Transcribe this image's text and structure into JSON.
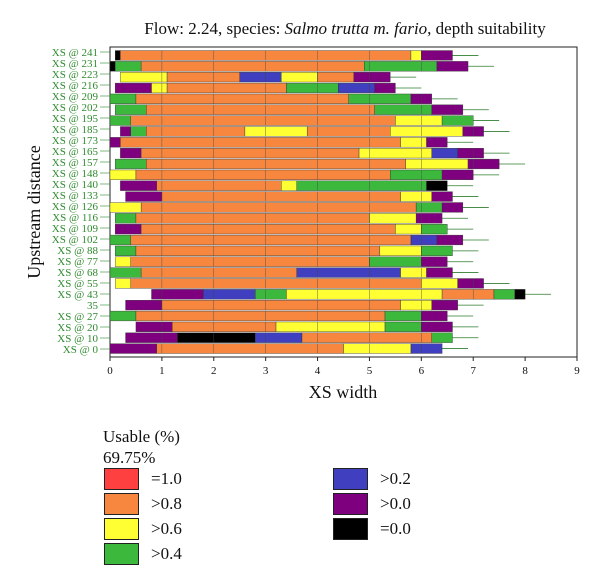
{
  "title": {
    "prefix": "Flow: 2.24, species: ",
    "species": "Salmo trutta m. fario",
    "suffix": ", depth suitability"
  },
  "legend": {
    "title": "Usable (%)",
    "value": "69.75%",
    "items": [
      {
        "label": "=1.0",
        "color": "#ff4040"
      },
      {
        "label": ">0.8",
        "color": "#f7873f"
      },
      {
        "label": ">0.6",
        "color": "#ffff33"
      },
      {
        "label": ">0.4",
        "color": "#3cb83c"
      },
      {
        "label": ">0.2",
        "color": "#3f3fbf"
      },
      {
        "label": ">0.0",
        "color": "#7f007f"
      },
      {
        "label": "=0.0",
        "color": "#000000"
      }
    ]
  },
  "chart_data": {
    "type": "bar",
    "orientation": "horizontal",
    "stacked": true,
    "xlabel": "XS width",
    "ylabel": "Upstream distance",
    "xlim": [
      0,
      9
    ],
    "xticks": [
      0,
      1,
      2,
      3,
      4,
      5,
      6,
      7,
      8,
      9
    ],
    "ytick_labels": [
      "XS @ 241",
      "XS @ 231",
      "XS @ 223",
      "XS @ 216",
      "XS @ 209",
      "XS @ 202",
      "XS @ 195",
      "XS @ 185",
      "XS @ 173",
      "XS @ 165",
      "XS @ 157",
      "XS @ 148",
      "XS @ 140",
      "XS @ 133",
      "XS @ 126",
      "XS @ 116",
      "XS @ 109",
      "XS @ 102",
      "XS @ 88",
      "XS @ 77",
      "XS @ 68",
      "XS @ 55",
      "XS @ 43",
      "35",
      "XS @ 27",
      "XS @ 20",
      "XS @ 10",
      "XS @ 0"
    ],
    "cross_sections": [
      {
        "xs": 241,
        "segments": [
          [
            0.1,
            0.2,
            "=0.0"
          ],
          [
            0.2,
            5.8,
            ">0.8"
          ],
          [
            5.8,
            6.0,
            ">0.6"
          ],
          [
            6.0,
            6.6,
            ">0.0"
          ]
        ]
      },
      {
        "xs": 231,
        "segments": [
          [
            0.0,
            0.1,
            "=0.0"
          ],
          [
            0.1,
            0.6,
            ">0.4"
          ],
          [
            0.6,
            4.9,
            ">0.8"
          ],
          [
            4.9,
            6.3,
            ">0.4"
          ],
          [
            6.3,
            6.9,
            ">0.0"
          ]
        ]
      },
      {
        "xs": 223,
        "segments": [
          [
            0.2,
            1.1,
            ">0.6"
          ],
          [
            1.1,
            2.5,
            ">0.8"
          ],
          [
            2.5,
            3.3,
            ">0.2"
          ],
          [
            3.3,
            4.0,
            ">0.6"
          ],
          [
            4.0,
            4.7,
            ">0.8"
          ],
          [
            4.7,
            5.4,
            ">0.0"
          ]
        ]
      },
      {
        "xs": 216,
        "segments": [
          [
            0.1,
            0.8,
            ">0.0"
          ],
          [
            0.8,
            1.1,
            ">0.6"
          ],
          [
            1.1,
            3.4,
            ">0.8"
          ],
          [
            3.4,
            4.4,
            ">0.4"
          ],
          [
            4.4,
            5.1,
            ">0.2"
          ],
          [
            5.1,
            5.5,
            ">0.0"
          ]
        ]
      },
      {
        "xs": 209,
        "segments": [
          [
            0.0,
            0.5,
            ">0.4"
          ],
          [
            0.5,
            4.6,
            ">0.8"
          ],
          [
            4.6,
            5.8,
            ">0.4"
          ],
          [
            5.8,
            6.2,
            ">0.0"
          ]
        ]
      },
      {
        "xs": 202,
        "segments": [
          [
            0.1,
            0.7,
            ">0.4"
          ],
          [
            0.7,
            5.1,
            ">0.8"
          ],
          [
            5.1,
            6.2,
            ">0.4"
          ],
          [
            6.2,
            6.8,
            ">0.0"
          ]
        ]
      },
      {
        "xs": 195,
        "segments": [
          [
            0.0,
            0.4,
            ">0.4"
          ],
          [
            0.4,
            5.5,
            ">0.8"
          ],
          [
            5.5,
            6.4,
            ">0.6"
          ],
          [
            6.4,
            7.0,
            ">0.4"
          ]
        ]
      },
      {
        "xs": 185,
        "segments": [
          [
            0.2,
            0.4,
            ">0.0"
          ],
          [
            0.4,
            0.7,
            ">0.4"
          ],
          [
            0.7,
            2.6,
            ">0.8"
          ],
          [
            2.6,
            3.8,
            ">0.6"
          ],
          [
            3.8,
            5.4,
            ">0.8"
          ],
          [
            5.4,
            6.8,
            ">0.6"
          ],
          [
            6.8,
            7.2,
            ">0.0"
          ]
        ]
      },
      {
        "xs": 173,
        "segments": [
          [
            0.0,
            0.2,
            ">0.0"
          ],
          [
            0.2,
            5.6,
            ">0.8"
          ],
          [
            5.6,
            6.1,
            ">0.6"
          ],
          [
            6.1,
            6.5,
            ">0.0"
          ]
        ]
      },
      {
        "xs": 165,
        "segments": [
          [
            0.2,
            0.6,
            ">0.0"
          ],
          [
            0.6,
            4.8,
            ">0.8"
          ],
          [
            4.8,
            6.2,
            ">0.6"
          ],
          [
            6.2,
            6.7,
            ">0.2"
          ],
          [
            6.7,
            7.2,
            ">0.0"
          ]
        ]
      },
      {
        "xs": 157,
        "segments": [
          [
            0.1,
            0.7,
            ">0.4"
          ],
          [
            0.7,
            5.7,
            ">0.8"
          ],
          [
            5.7,
            6.9,
            ">0.6"
          ],
          [
            6.9,
            7.5,
            ">0.0"
          ]
        ]
      },
      {
        "xs": 148,
        "segments": [
          [
            0.0,
            0.5,
            ">0.6"
          ],
          [
            0.5,
            5.4,
            ">0.8"
          ],
          [
            5.4,
            6.4,
            ">0.4"
          ],
          [
            6.4,
            7.0,
            ">0.0"
          ]
        ]
      },
      {
        "xs": 140,
        "segments": [
          [
            0.2,
            0.9,
            ">0.0"
          ],
          [
            0.9,
            3.3,
            ">0.8"
          ],
          [
            3.3,
            3.6,
            ">0.6"
          ],
          [
            3.6,
            6.1,
            ">0.4"
          ],
          [
            6.1,
            6.5,
            "=0.0"
          ]
        ]
      },
      {
        "xs": 133,
        "segments": [
          [
            0.3,
            1.0,
            ">0.0"
          ],
          [
            1.0,
            5.6,
            ">0.8"
          ],
          [
            5.6,
            6.2,
            ">0.6"
          ],
          [
            6.2,
            6.6,
            ">0.0"
          ]
        ]
      },
      {
        "xs": 126,
        "segments": [
          [
            0.0,
            0.6,
            ">0.6"
          ],
          [
            0.6,
            5.9,
            ">0.8"
          ],
          [
            5.9,
            6.4,
            ">0.4"
          ],
          [
            6.4,
            6.8,
            ">0.0"
          ]
        ]
      },
      {
        "xs": 116,
        "segments": [
          [
            0.1,
            0.5,
            ">0.4"
          ],
          [
            0.5,
            5.0,
            ">0.8"
          ],
          [
            5.0,
            5.9,
            ">0.6"
          ],
          [
            5.9,
            6.4,
            ">0.0"
          ]
        ]
      },
      {
        "xs": 109,
        "segments": [
          [
            0.1,
            0.6,
            ">0.0"
          ],
          [
            0.6,
            5.5,
            ">0.8"
          ],
          [
            5.5,
            6.0,
            ">0.6"
          ],
          [
            6.0,
            6.5,
            ">0.4"
          ]
        ]
      },
      {
        "xs": 102,
        "segments": [
          [
            0.0,
            0.4,
            ">0.4"
          ],
          [
            0.4,
            5.8,
            ">0.8"
          ],
          [
            5.8,
            6.3,
            ">0.2"
          ],
          [
            6.3,
            6.8,
            ">0.0"
          ]
        ]
      },
      {
        "xs": 88,
        "segments": [
          [
            0.1,
            0.5,
            ">0.4"
          ],
          [
            0.5,
            5.2,
            ">0.8"
          ],
          [
            5.2,
            6.0,
            ">0.6"
          ],
          [
            6.0,
            6.6,
            ">0.4"
          ]
        ]
      },
      {
        "xs": 77,
        "segments": [
          [
            0.1,
            0.4,
            ">0.6"
          ],
          [
            0.4,
            5.0,
            ">0.8"
          ],
          [
            5.0,
            6.0,
            ">0.4"
          ],
          [
            6.0,
            6.5,
            ">0.0"
          ]
        ]
      },
      {
        "xs": 68,
        "segments": [
          [
            0.0,
            0.6,
            ">0.4"
          ],
          [
            0.6,
            3.6,
            ">0.8"
          ],
          [
            3.6,
            5.6,
            ">0.2"
          ],
          [
            5.6,
            6.1,
            ">0.6"
          ],
          [
            6.1,
            6.6,
            ">0.0"
          ]
        ]
      },
      {
        "xs": 55,
        "segments": [
          [
            0.1,
            0.4,
            ">0.6"
          ],
          [
            0.4,
            6.0,
            ">0.8"
          ],
          [
            6.0,
            6.7,
            ">0.6"
          ],
          [
            6.7,
            7.2,
            ">0.0"
          ]
        ]
      },
      {
        "xs": 43,
        "segments": [
          [
            0.8,
            1.8,
            ">0.0"
          ],
          [
            1.8,
            2.8,
            ">0.2"
          ],
          [
            2.8,
            3.4,
            ">0.4"
          ],
          [
            3.4,
            6.4,
            ">0.6"
          ],
          [
            6.4,
            7.4,
            ">0.8"
          ],
          [
            7.4,
            7.8,
            ">0.4"
          ],
          [
            7.8,
            8.0,
            "=0.0"
          ]
        ]
      },
      {
        "xs": 35,
        "segments": [
          [
            0.3,
            1.0,
            ">0.0"
          ],
          [
            1.0,
            5.6,
            ">0.8"
          ],
          [
            5.6,
            6.2,
            ">0.6"
          ],
          [
            6.2,
            6.7,
            ">0.0"
          ]
        ]
      },
      {
        "xs": 27,
        "segments": [
          [
            0.0,
            0.5,
            ">0.4"
          ],
          [
            0.5,
            5.3,
            ">0.8"
          ],
          [
            5.3,
            6.0,
            ">0.4"
          ],
          [
            6.0,
            6.5,
            ">0.0"
          ]
        ]
      },
      {
        "xs": 20,
        "segments": [
          [
            0.5,
            1.2,
            ">0.0"
          ],
          [
            1.2,
            3.2,
            ">0.8"
          ],
          [
            3.2,
            5.3,
            ">0.6"
          ],
          [
            5.3,
            6.0,
            ">0.4"
          ],
          [
            6.0,
            6.6,
            ">0.0"
          ]
        ]
      },
      {
        "xs": 10,
        "segments": [
          [
            0.3,
            1.3,
            ">0.0"
          ],
          [
            1.3,
            2.8,
            "=0.0"
          ],
          [
            2.8,
            3.7,
            ">0.2"
          ],
          [
            3.7,
            6.2,
            ">0.8"
          ],
          [
            6.2,
            6.6,
            ">0.4"
          ]
        ]
      },
      {
        "xs": 0,
        "segments": [
          [
            0.0,
            0.9,
            ">0.0"
          ],
          [
            0.9,
            4.5,
            ">0.8"
          ],
          [
            4.5,
            5.8,
            ">0.6"
          ],
          [
            5.8,
            6.4,
            ">0.2"
          ]
        ]
      }
    ]
  }
}
